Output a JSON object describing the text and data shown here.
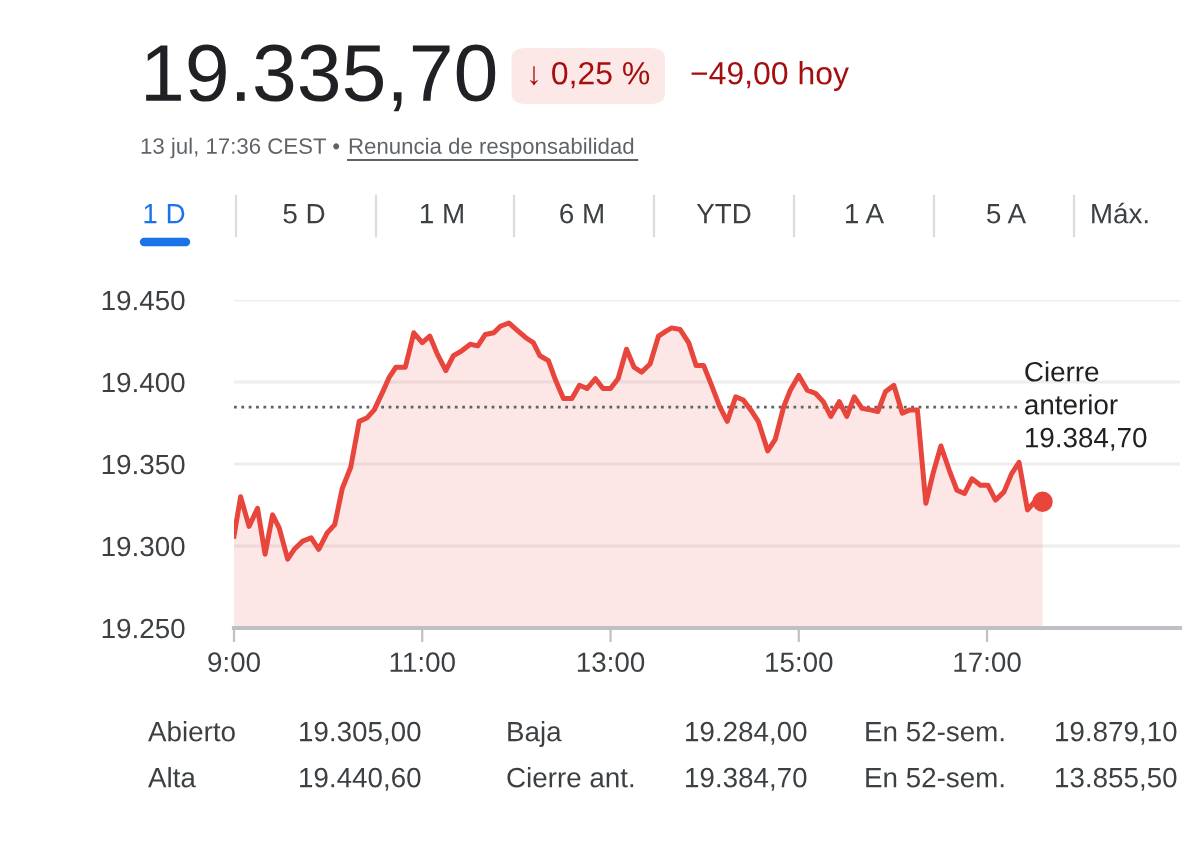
{
  "chart_data": {
    "type": "area",
    "title": "19.335,70",
    "x": [
      9.0,
      9.07,
      9.16,
      9.25,
      9.33,
      9.41,
      9.48,
      9.57,
      9.64,
      9.73,
      9.82,
      9.9,
      9.99,
      10.07,
      10.15,
      10.24,
      10.33,
      10.41,
      10.49,
      10.58,
      10.65,
      10.72,
      10.82,
      10.91,
      11.0,
      11.08,
      11.16,
      11.25,
      11.33,
      11.42,
      11.51,
      11.59,
      11.67,
      11.76,
      11.83,
      11.92,
      12.0,
      12.1,
      12.18,
      12.25,
      12.34,
      12.41,
      12.5,
      12.59,
      12.67,
      12.75,
      12.84,
      12.92,
      13.0,
      13.08,
      13.17,
      13.25,
      13.33,
      13.42,
      13.51,
      13.59,
      13.65,
      13.74,
      13.83,
      13.91,
      13.99,
      14.08,
      14.16,
      14.24,
      14.33,
      14.41,
      14.49,
      14.57,
      14.67,
      14.75,
      14.84,
      14.91,
      15.0,
      15.09,
      15.18,
      15.26,
      15.34,
      15.43,
      15.51,
      15.59,
      15.67,
      15.76,
      15.84,
      15.92,
      16.01,
      16.1,
      16.18,
      16.26,
      16.35,
      16.43,
      16.51,
      16.6,
      16.68,
      16.76,
      16.84,
      16.93,
      17.01,
      17.09,
      17.18,
      17.26,
      17.34,
      17.43,
      17.52,
      17.59
    ],
    "series": [
      {
        "color": "#e8453c",
        "values": [
          19306,
          19330,
          19312,
          19323,
          19295,
          19319,
          19311,
          19292,
          19298,
          19303,
          19305,
          19298,
          19308,
          19313,
          19335,
          19348,
          19376,
          19378,
          19383,
          19394,
          19403,
          19409,
          19409,
          19430,
          19424,
          19428,
          19417,
          19407,
          19416,
          19419,
          19423,
          19422,
          19429,
          19430,
          19434,
          19436,
          19432,
          19427,
          19424,
          19416,
          19413,
          19402,
          19390,
          19390,
          19398,
          19396,
          19402,
          19396,
          19396,
          19402,
          19420,
          19409,
          19406,
          19411,
          19428,
          19431,
          19433,
          19432,
          19424,
          19410,
          19410,
          19397,
          19385,
          19376,
          19391,
          19389,
          19383,
          19376,
          19358,
          19365,
          19385,
          19395,
          19404,
          19395,
          19393,
          19388,
          19379,
          19388,
          19379,
          19391,
          19384,
          19383,
          19382,
          19394,
          19398,
          19381,
          19383,
          19383,
          19326,
          19345,
          19361,
          19346,
          19334,
          19332,
          19341,
          19337,
          19337,
          19328,
          19333,
          19344,
          19351,
          19322,
          19328,
          19327
        ]
      },
      {
        "type": "scatter",
        "color": "#e8453c",
        "marker": "circle",
        "x": [
          17.59
        ],
        "values": [
          19327
        ]
      }
    ],
    "xlim": [
      9,
      19.05
    ],
    "ylim": [
      19250,
      19450
    ],
    "xticks": [
      {
        "value": 9,
        "label": "9:00"
      },
      {
        "value": 11,
        "label": "11:00"
      },
      {
        "value": 13,
        "label": "13:00"
      },
      {
        "value": 15,
        "label": "15:00"
      },
      {
        "value": 17,
        "label": "17:00"
      }
    ],
    "yticks": [
      {
        "value": 19250,
        "label": "19.250"
      },
      {
        "value": 19300,
        "label": "19.300"
      },
      {
        "value": 19350,
        "label": "19.350"
      },
      {
        "value": 19400,
        "label": "19.400"
      },
      {
        "value": 19450,
        "label": "19.450"
      }
    ],
    "grid": "y",
    "ref_lines": [
      {
        "axis": "y",
        "value": 19384.7,
        "label": "Cierre\nanterior\n19.384,70",
        "line_style": "dotted",
        "color": "#5f6368"
      }
    ],
    "annotations": [
      "↓ 0,25 %",
      "−49,00 hoy",
      "13 jul, 17:36 CEST •",
      "Renuncia de responsabilidad",
      "1 D",
      "5 D",
      "1 M",
      "6 M",
      "YTD",
      "1 A",
      "5 A",
      "Máx.",
      "Abierto",
      "19.305,00",
      "Baja",
      "19.284,00",
      "En 52-sem.",
      "19.879,10",
      "Alta",
      "19.440,60",
      "Cierre ant.",
      "19.384,70",
      "En 52-sem.",
      "13.855,50"
    ]
  }
}
